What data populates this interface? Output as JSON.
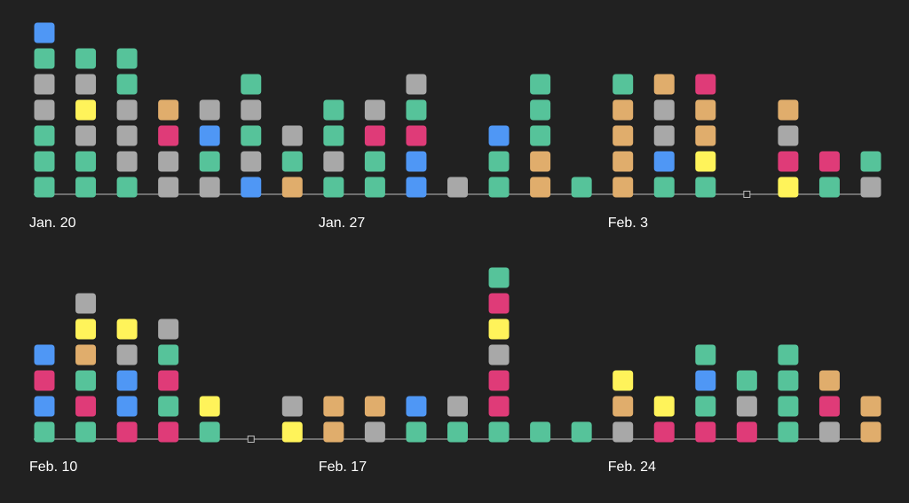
{
  "colors": {
    "background": "#212121",
    "axis": "#bdbdbd",
    "green": "#56c39a",
    "gray": "#a8a8a8",
    "blue": "#4f97f5",
    "yellow": "#fff35a",
    "orange": "#e0ad6c",
    "pink": "#df3b78"
  },
  "chart_data": {
    "type": "stacked-unit-columns",
    "legend": "none",
    "grid": false,
    "rows": [
      {
        "tick_labels": [
          "Jan. 20",
          "Jan. 27",
          "Feb. 3"
        ],
        "days": [
          [
            "green",
            "green",
            "green",
            "gray",
            "gray",
            "green",
            "blue"
          ],
          [
            "green",
            "green",
            "gray",
            "yellow",
            "gray",
            "green"
          ],
          [
            "green",
            "gray",
            "gray",
            "gray",
            "green",
            "green"
          ],
          [
            "gray",
            "gray",
            "pink",
            "orange"
          ],
          [
            "gray",
            "green",
            "blue",
            "gray"
          ],
          [
            "blue",
            "gray",
            "green",
            "gray",
            "green"
          ],
          [
            "orange",
            "green",
            "gray"
          ],
          [
            "green",
            "gray",
            "green",
            "green"
          ],
          [
            "green",
            "green",
            "pink",
            "gray"
          ],
          [
            "blue",
            "blue",
            "pink",
            "green",
            "gray"
          ],
          [
            "gray"
          ],
          [
            "green",
            "green",
            "blue"
          ],
          [
            "orange",
            "orange",
            "green",
            "green",
            "green"
          ],
          [
            "green"
          ],
          [
            "orange",
            "orange",
            "orange",
            "orange",
            "green"
          ],
          [
            "green",
            "blue",
            "gray",
            "gray",
            "orange"
          ],
          [
            "green",
            "yellow",
            "orange",
            "orange",
            "pink"
          ],
          [],
          [
            "yellow",
            "pink",
            "gray",
            "orange"
          ],
          [
            "green",
            "pink"
          ],
          [
            "gray",
            "green"
          ]
        ]
      },
      {
        "tick_labels": [
          "Feb. 10",
          "Feb. 17",
          "Feb. 24"
        ],
        "days": [
          [
            "green",
            "blue",
            "pink",
            "blue"
          ],
          [
            "green",
            "pink",
            "green",
            "orange",
            "yellow",
            "gray"
          ],
          [
            "pink",
            "blue",
            "blue",
            "gray",
            "yellow"
          ],
          [
            "pink",
            "green",
            "pink",
            "green",
            "gray"
          ],
          [
            "green",
            "yellow"
          ],
          [],
          [
            "yellow",
            "gray"
          ],
          [
            "orange",
            "orange"
          ],
          [
            "gray",
            "orange"
          ],
          [
            "green",
            "blue"
          ],
          [
            "green",
            "gray"
          ],
          [
            "green",
            "pink",
            "pink",
            "gray",
            "yellow",
            "pink",
            "green"
          ],
          [
            "green"
          ],
          [
            "green"
          ],
          [
            "gray",
            "orange",
            "yellow"
          ],
          [
            "pink",
            "yellow"
          ],
          [
            "pink",
            "green",
            "blue",
            "green"
          ],
          [
            "pink",
            "gray",
            "green"
          ],
          [
            "green",
            "green",
            "green",
            "green"
          ],
          [
            "gray",
            "pink",
            "orange"
          ],
          [
            "orange",
            "orange"
          ]
        ]
      }
    ]
  }
}
